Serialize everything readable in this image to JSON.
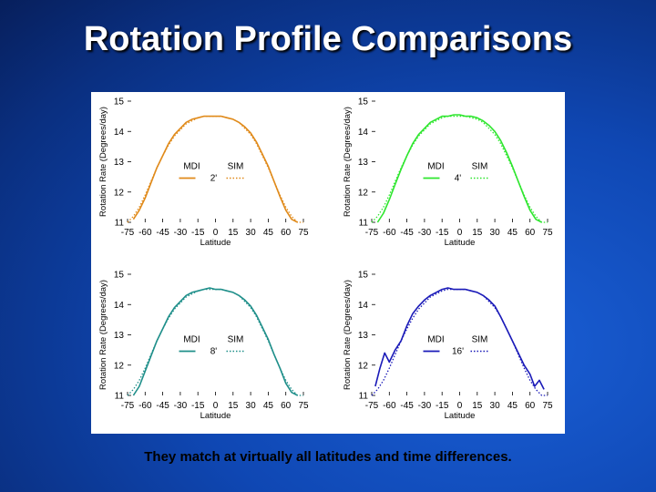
{
  "slide": {
    "title": "Rotation Profile Comparisons",
    "caption": "They match at virtually all latitudes and time differences."
  },
  "colors": {
    "background": "#0f47b3",
    "title_text": "#ffffff",
    "panel_background": "#ffffff"
  },
  "chart_data": [
    {
      "type": "line",
      "xlabel": "Latitude",
      "ylabel": "Rotation Rate (Degrees/day)",
      "xticks": [
        "-75",
        "-60",
        "-45",
        "-30",
        "-15",
        "0",
        "15",
        "30",
        "45",
        "60",
        "75"
      ],
      "yticks": [
        "11",
        "12",
        "13",
        "14",
        "15"
      ],
      "xlim": [
        -75,
        75
      ],
      "ylim": [
        11,
        15
      ],
      "legend_placement": "center",
      "color": "#e08a1a",
      "time_label": "2'",
      "series": [
        {
          "name": "MDI",
          "style": "solid",
          "x": [
            -70,
            -65,
            -60,
            -55,
            -50,
            -45,
            -40,
            -35,
            -30,
            -25,
            -20,
            -15,
            -10,
            -5,
            0,
            5,
            10,
            15,
            20,
            25,
            30,
            35,
            40,
            45,
            50,
            55,
            60,
            65,
            70
          ],
          "y": [
            11.1,
            11.4,
            11.8,
            12.3,
            12.8,
            13.2,
            13.6,
            13.9,
            14.1,
            14.3,
            14.4,
            14.45,
            14.5,
            14.5,
            14.5,
            14.5,
            14.45,
            14.4,
            14.3,
            14.15,
            13.95,
            13.65,
            13.25,
            12.85,
            12.35,
            11.85,
            11.4,
            11.1,
            11.0
          ]
        },
        {
          "name": "SIM",
          "style": "dotted",
          "x": [
            -75,
            -70,
            -65,
            -60,
            -55,
            -50,
            -45,
            -40,
            -35,
            -30,
            -25,
            -20,
            -15,
            -10,
            -5,
            0,
            5,
            10,
            15,
            20,
            25,
            30,
            35,
            40,
            45,
            50,
            55,
            60,
            65,
            70,
            75
          ],
          "y": [
            11.0,
            11.2,
            11.5,
            11.9,
            12.35,
            12.8,
            13.2,
            13.55,
            13.85,
            14.05,
            14.25,
            14.35,
            14.45,
            14.5,
            14.5,
            14.5,
            14.5,
            14.45,
            14.4,
            14.3,
            14.1,
            13.9,
            13.6,
            13.2,
            12.8,
            12.35,
            11.9,
            11.5,
            11.2,
            11.0,
            11.0
          ]
        }
      ]
    },
    {
      "type": "line",
      "xlabel": "Latitude",
      "ylabel": "Rotation Rate (Degrees/day)",
      "xticks": [
        "-75",
        "-60",
        "-45",
        "-30",
        "-15",
        "0",
        "15",
        "30",
        "45",
        "60",
        "75"
      ],
      "yticks": [
        "11",
        "12",
        "13",
        "14",
        "15"
      ],
      "xlim": [
        -75,
        75
      ],
      "ylim": [
        11,
        15
      ],
      "legend_placement": "center",
      "color": "#2ee62e",
      "time_label": "4'",
      "series": [
        {
          "name": "MDI",
          "style": "solid",
          "x": [
            -70,
            -65,
            -60,
            -55,
            -50,
            -45,
            -40,
            -35,
            -30,
            -25,
            -20,
            -15,
            -10,
            -5,
            0,
            5,
            10,
            15,
            20,
            25,
            30,
            35,
            40,
            45,
            50,
            55,
            60,
            65,
            70
          ],
          "y": [
            11.0,
            11.3,
            11.75,
            12.25,
            12.75,
            13.2,
            13.6,
            13.9,
            14.1,
            14.3,
            14.4,
            14.5,
            14.5,
            14.55,
            14.55,
            14.5,
            14.5,
            14.45,
            14.35,
            14.2,
            14.0,
            13.7,
            13.3,
            12.85,
            12.35,
            11.85,
            11.4,
            11.1,
            11.0
          ]
        },
        {
          "name": "SIM",
          "style": "dotted",
          "x": [
            -75,
            -70,
            -65,
            -60,
            -55,
            -50,
            -45,
            -40,
            -35,
            -30,
            -25,
            -20,
            -15,
            -10,
            -5,
            0,
            5,
            10,
            15,
            20,
            25,
            30,
            35,
            40,
            45,
            50,
            55,
            60,
            65,
            70,
            75
          ],
          "y": [
            11.0,
            11.2,
            11.5,
            11.9,
            12.35,
            12.8,
            13.2,
            13.55,
            13.85,
            14.05,
            14.25,
            14.35,
            14.45,
            14.5,
            14.5,
            14.5,
            14.5,
            14.45,
            14.4,
            14.3,
            14.1,
            13.9,
            13.6,
            13.2,
            12.8,
            12.35,
            11.9,
            11.5,
            11.2,
            11.0,
            11.0
          ]
        }
      ]
    },
    {
      "type": "line",
      "xlabel": "Latitude",
      "ylabel": "Rotation Rate (Degrees/day)",
      "xticks": [
        "-75",
        "-60",
        "-45",
        "-30",
        "-15",
        "0",
        "15",
        "30",
        "45",
        "60",
        "75"
      ],
      "yticks": [
        "11",
        "12",
        "13",
        "14",
        "15"
      ],
      "xlim": [
        -75,
        75
      ],
      "ylim": [
        11,
        15
      ],
      "legend_placement": "center",
      "color": "#1f8f8a",
      "time_label": "8'",
      "series": [
        {
          "name": "MDI",
          "style": "solid",
          "x": [
            -70,
            -65,
            -60,
            -55,
            -50,
            -45,
            -40,
            -35,
            -30,
            -25,
            -20,
            -15,
            -10,
            -5,
            0,
            5,
            10,
            15,
            20,
            25,
            30,
            35,
            40,
            45,
            50,
            55,
            60,
            65,
            70
          ],
          "y": [
            11.0,
            11.3,
            11.8,
            12.3,
            12.8,
            13.2,
            13.6,
            13.9,
            14.1,
            14.3,
            14.4,
            14.45,
            14.5,
            14.55,
            14.5,
            14.5,
            14.45,
            14.4,
            14.3,
            14.15,
            13.95,
            13.65,
            13.25,
            12.85,
            12.35,
            11.9,
            11.4,
            11.1,
            11.0
          ]
        },
        {
          "name": "SIM",
          "style": "dotted",
          "x": [
            -75,
            -70,
            -65,
            -60,
            -55,
            -50,
            -45,
            -40,
            -35,
            -30,
            -25,
            -20,
            -15,
            -10,
            -5,
            0,
            5,
            10,
            15,
            20,
            25,
            30,
            35,
            40,
            45,
            50,
            55,
            60,
            65,
            70,
            75
          ],
          "y": [
            11.0,
            11.2,
            11.5,
            11.9,
            12.35,
            12.8,
            13.2,
            13.55,
            13.85,
            14.05,
            14.25,
            14.35,
            14.45,
            14.5,
            14.5,
            14.5,
            14.5,
            14.45,
            14.4,
            14.3,
            14.1,
            13.9,
            13.6,
            13.2,
            12.8,
            12.35,
            11.9,
            11.5,
            11.2,
            11.0,
            11.0
          ]
        }
      ]
    },
    {
      "type": "line",
      "xlabel": "Latitude",
      "ylabel": "Rotation Rate (Degrees/day)",
      "xticks": [
        "-75",
        "-60",
        "-45",
        "-30",
        "-15",
        "0",
        "15",
        "30",
        "45",
        "60",
        "75"
      ],
      "yticks": [
        "11",
        "12",
        "13",
        "14",
        "15"
      ],
      "xlim": [
        -75,
        75
      ],
      "ylim": [
        11,
        15
      ],
      "legend_placement": "center",
      "color": "#1a1ab8",
      "time_label": "16'",
      "series": [
        {
          "name": "MDI",
          "style": "solid",
          "x": [
            -72,
            -68,
            -64,
            -60,
            -55,
            -50,
            -45,
            -40,
            -35,
            -30,
            -25,
            -20,
            -15,
            -10,
            -5,
            0,
            5,
            10,
            15,
            20,
            25,
            30,
            35,
            40,
            45,
            50,
            55,
            60,
            64,
            68,
            72
          ],
          "y": [
            11.3,
            11.9,
            12.4,
            12.1,
            12.5,
            12.8,
            13.3,
            13.7,
            13.95,
            14.15,
            14.3,
            14.4,
            14.5,
            14.55,
            14.5,
            14.5,
            14.5,
            14.45,
            14.4,
            14.3,
            14.15,
            13.95,
            13.6,
            13.2,
            12.8,
            12.4,
            12.0,
            11.7,
            11.3,
            11.5,
            11.2
          ]
        },
        {
          "name": "SIM",
          "style": "dotted",
          "x": [
            -75,
            -70,
            -65,
            -60,
            -55,
            -50,
            -45,
            -40,
            -35,
            -30,
            -25,
            -20,
            -15,
            -10,
            -5,
            0,
            5,
            10,
            15,
            20,
            25,
            30,
            35,
            40,
            45,
            50,
            55,
            60,
            65,
            70,
            75
          ],
          "y": [
            11.0,
            11.2,
            11.5,
            11.9,
            12.35,
            12.8,
            13.2,
            13.55,
            13.85,
            14.05,
            14.25,
            14.35,
            14.45,
            14.5,
            14.5,
            14.5,
            14.5,
            14.45,
            14.4,
            14.3,
            14.1,
            13.9,
            13.6,
            13.2,
            12.8,
            12.35,
            11.9,
            11.5,
            11.2,
            11.0,
            11.0
          ]
        }
      ]
    }
  ]
}
